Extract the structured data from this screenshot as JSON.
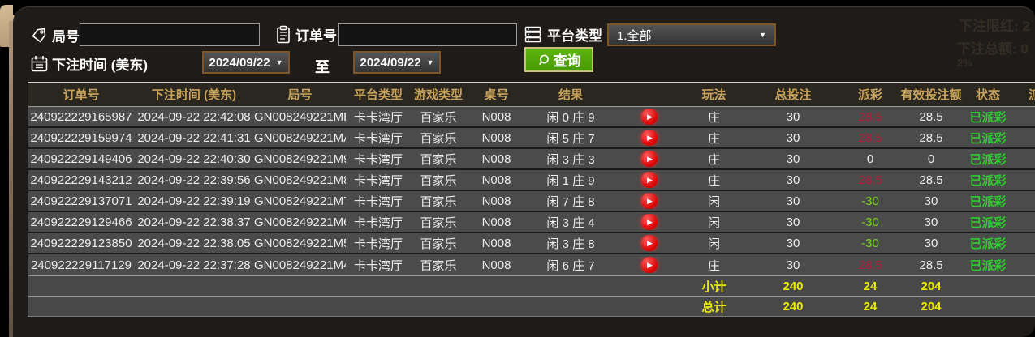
{
  "filters": {
    "round_label": "局号",
    "order_label": "订单号",
    "platform_label": "平台类型",
    "platform_value": "1.全部",
    "bet_time_label": "下注时间 (美东)",
    "date_from": "2024/09/22",
    "date_to": "2024/09/22",
    "to_label": "至",
    "query_label": "查询",
    "round_input_value": "",
    "order_input_value": ""
  },
  "background_bleed": {
    "line1": "下注限红: 2",
    "line2": "下注总额: 0",
    "line3": "2%"
  },
  "table": {
    "headers": [
      "订单号",
      "下注时间 (美东)",
      "局号",
      "平台类型",
      "游戏类型",
      "桌号",
      "结果",
      "",
      "玩法",
      "总投注",
      "派彩",
      "有效投注额",
      "状态",
      "派"
    ],
    "rows": [
      {
        "order_id": "240922229165987",
        "bet_time": "2024-09-22 22:42:08",
        "round_id": "GN008249221MB",
        "platform": "卡卡湾厅",
        "game": "百家乐",
        "table_no": "N008",
        "result": "闲 0 庄 9",
        "bet_type": "庄",
        "total_bet": "30",
        "payout": "28.5",
        "payout_color": "red",
        "valid_bet": "28.5",
        "status": "已派彩"
      },
      {
        "order_id": "240922229159974",
        "bet_time": "2024-09-22 22:41:31",
        "round_id": "GN008249221MA",
        "platform": "卡卡湾厅",
        "game": "百家乐",
        "table_no": "N008",
        "result": "闲 5 庄 7",
        "bet_type": "庄",
        "total_bet": "30",
        "payout": "28.5",
        "payout_color": "red",
        "valid_bet": "28.5",
        "status": "已派彩"
      },
      {
        "order_id": "240922229149406",
        "bet_time": "2024-09-22 22:40:30",
        "round_id": "GN008249221M9",
        "platform": "卡卡湾厅",
        "game": "百家乐",
        "table_no": "N008",
        "result": "闲 3 庄 3",
        "bet_type": "庄",
        "total_bet": "30",
        "payout": "0",
        "payout_color": "zero",
        "valid_bet": "0",
        "status": "已派彩"
      },
      {
        "order_id": "240922229143212",
        "bet_time": "2024-09-22 22:39:56",
        "round_id": "GN008249221M8",
        "platform": "卡卡湾厅",
        "game": "百家乐",
        "table_no": "N008",
        "result": "闲 1 庄 9",
        "bet_type": "庄",
        "total_bet": "30",
        "payout": "28.5",
        "payout_color": "red",
        "valid_bet": "28.5",
        "status": "已派彩"
      },
      {
        "order_id": "240922229137071",
        "bet_time": "2024-09-22 22:39:19",
        "round_id": "GN008249221M7",
        "platform": "卡卡湾厅",
        "game": "百家乐",
        "table_no": "N008",
        "result": "闲 7 庄 8",
        "bet_type": "闲",
        "total_bet": "30",
        "payout": "-30",
        "payout_color": "green",
        "valid_bet": "30",
        "status": "已派彩"
      },
      {
        "order_id": "240922229129466",
        "bet_time": "2024-09-22 22:38:37",
        "round_id": "GN008249221M6",
        "platform": "卡卡湾厅",
        "game": "百家乐",
        "table_no": "N008",
        "result": "闲 3 庄 4",
        "bet_type": "闲",
        "total_bet": "30",
        "payout": "-30",
        "payout_color": "green",
        "valid_bet": "30",
        "status": "已派彩"
      },
      {
        "order_id": "240922229123850",
        "bet_time": "2024-09-22 22:38:05",
        "round_id": "GN008249221M5",
        "platform": "卡卡湾厅",
        "game": "百家乐",
        "table_no": "N008",
        "result": "闲 3 庄 8",
        "bet_type": "闲",
        "total_bet": "30",
        "payout": "-30",
        "payout_color": "green",
        "valid_bet": "30",
        "status": "已派彩"
      },
      {
        "order_id": "240922229117129",
        "bet_time": "2024-09-22 22:37:28",
        "round_id": "GN008249221M4",
        "platform": "卡卡湾厅",
        "game": "百家乐",
        "table_no": "N008",
        "result": "闲 6 庄 7",
        "bet_type": "庄",
        "total_bet": "30",
        "payout": "28.5",
        "payout_color": "red",
        "valid_bet": "28.5",
        "status": "已派彩"
      }
    ],
    "subtotal": {
      "label": "小计",
      "total_bet": "240",
      "payout": "24",
      "valid_bet": "204"
    },
    "grand_total": {
      "label": "总计",
      "total_bet": "240",
      "payout": "24",
      "valid_bet": "204"
    },
    "play_icon_glyph": "▶"
  },
  "colors": {
    "header_gold": "#c9a35a",
    "status_green": "#2ecc2e",
    "payout_red": "#b2213a",
    "payout_green": "#79d41f",
    "total_yellow": "#e8ea00",
    "button_green": "#52ab0a",
    "select_border_brown": "#7d5526",
    "row_gray": "#4b4b4b",
    "panel_dark": "#1e1b18",
    "tan_accent": "#c9ad8a"
  }
}
